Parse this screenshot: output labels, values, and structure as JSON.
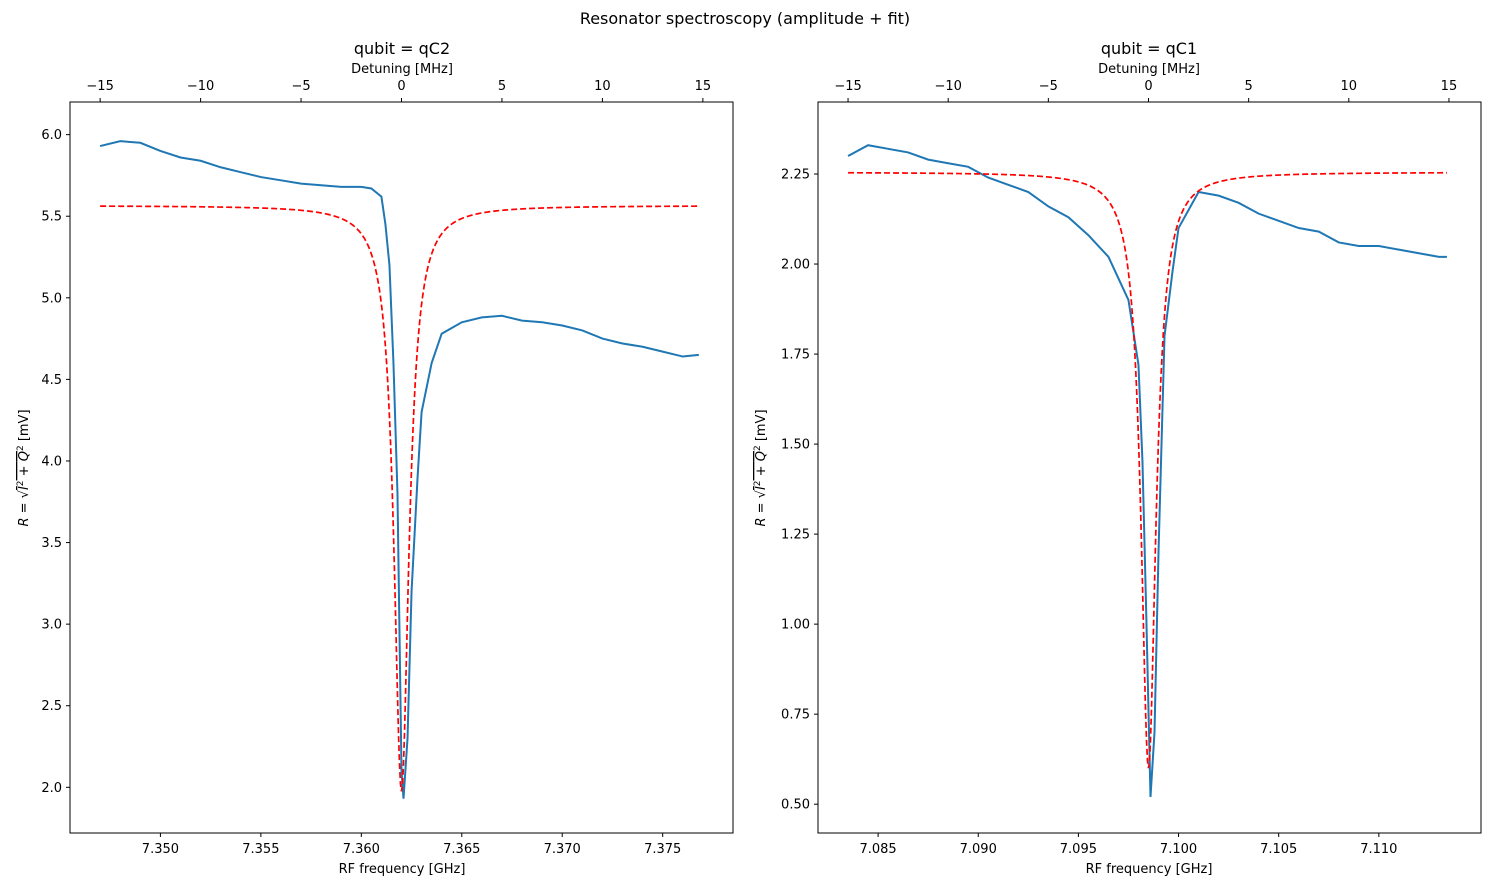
{
  "figure": {
    "title": "Resonator spectroscopy (amplitude + fit)"
  },
  "colors": {
    "data": "#1f77b4",
    "fit": "#ff0000"
  },
  "chart_data": [
    {
      "type": "line",
      "title": "qubit = qC2",
      "xlabel": "RF frequency [GHz]",
      "x2label": "Detuning [MHz]",
      "ylabel_parts": [
        "R",
        "I",
        "Q",
        "mV"
      ],
      "xlim": [
        7.3455,
        7.3785
      ],
      "ylim": [
        1.72,
        6.2
      ],
      "x_ticks": [
        7.35,
        7.355,
        7.36,
        7.365,
        7.37,
        7.375
      ],
      "x_tick_labels": [
        "7.350",
        "7.355",
        "7.360",
        "7.365",
        "7.370",
        "7.375"
      ],
      "y_ticks": [
        2.0,
        2.5,
        3.0,
        3.5,
        4.0,
        4.5,
        5.0,
        5.5,
        6.0
      ],
      "y_tick_labels": [
        "2.0",
        "2.5",
        "3.0",
        "3.5",
        "4.0",
        "4.5",
        "5.0",
        "5.5",
        "6.0"
      ],
      "x2_ticks": [
        -15,
        -10,
        -5,
        0,
        5,
        10,
        15
      ],
      "x2_tick_labels": [
        "−15",
        "−10",
        "−5",
        "0",
        "5",
        "10",
        "15"
      ],
      "resonance_ghz": 7.362,
      "series": [
        {
          "style": "solid",
          "color": "#1f77b4",
          "points": [
            [
              7.347,
              5.93
            ],
            [
              7.348,
              5.96
            ],
            [
              7.349,
              5.95
            ],
            [
              7.35,
              5.9
            ],
            [
              7.351,
              5.86
            ],
            [
              7.352,
              5.84
            ],
            [
              7.353,
              5.8
            ],
            [
              7.354,
              5.77
            ],
            [
              7.355,
              5.74
            ],
            [
              7.356,
              5.72
            ],
            [
              7.357,
              5.7
            ],
            [
              7.358,
              5.69
            ],
            [
              7.359,
              5.68
            ],
            [
              7.36,
              5.68
            ],
            [
              7.3605,
              5.67
            ],
            [
              7.361,
              5.62
            ],
            [
              7.3612,
              5.45
            ],
            [
              7.3614,
              5.2
            ],
            [
              7.3616,
              4.6
            ],
            [
              7.3618,
              3.8
            ],
            [
              7.362,
              2.1
            ],
            [
              7.3621,
              1.93
            ],
            [
              7.3623,
              2.3
            ],
            [
              7.3625,
              3.2
            ],
            [
              7.3628,
              3.9
            ],
            [
              7.363,
              4.3
            ],
            [
              7.3635,
              4.6
            ],
            [
              7.364,
              4.78
            ],
            [
              7.365,
              4.85
            ],
            [
              7.366,
              4.88
            ],
            [
              7.367,
              4.89
            ],
            [
              7.368,
              4.86
            ],
            [
              7.369,
              4.85
            ],
            [
              7.37,
              4.83
            ],
            [
              7.371,
              4.8
            ],
            [
              7.372,
              4.75
            ],
            [
              7.373,
              4.72
            ],
            [
              7.374,
              4.7
            ],
            [
              7.375,
              4.67
            ],
            [
              7.376,
              4.64
            ],
            [
              7.3768,
              4.65
            ]
          ]
        },
        {
          "style": "dashed",
          "color": "#ff0000",
          "baseline": 5.565,
          "depth": 3.59,
          "hwhm_ghz": 0.00045,
          "x_range": [
            7.347,
            7.3768
          ]
        }
      ]
    },
    {
      "type": "line",
      "title": "qubit = qC1",
      "xlabel": "RF frequency [GHz]",
      "x2label": "Detuning [MHz]",
      "ylabel_parts": [
        "R",
        "I",
        "Q",
        "mV"
      ],
      "xlim": [
        7.082,
        7.1151
      ],
      "ylim": [
        0.42,
        2.45
      ],
      "x_ticks": [
        7.085,
        7.09,
        7.095,
        7.1,
        7.105,
        7.11
      ],
      "x_tick_labels": [
        "7.085",
        "7.090",
        "7.095",
        "7.100",
        "7.105",
        "7.110"
      ],
      "y_ticks": [
        0.5,
        0.75,
        1.0,
        1.25,
        1.5,
        1.75,
        2.0,
        2.25
      ],
      "y_tick_labels": [
        "0.50",
        "0.75",
        "1.00",
        "1.25",
        "1.50",
        "1.75",
        "2.00",
        "2.25"
      ],
      "x2_ticks": [
        -15,
        -10,
        -5,
        0,
        5,
        10,
        15
      ],
      "x2_tick_labels": [
        "−15",
        "−10",
        "−5",
        "0",
        "5",
        "10",
        "15"
      ],
      "resonance_ghz": 7.0985,
      "series": [
        {
          "style": "solid",
          "color": "#1f77b4",
          "points": [
            [
              7.0835,
              2.3
            ],
            [
              7.0845,
              2.33
            ],
            [
              7.0855,
              2.32
            ],
            [
              7.0865,
              2.31
            ],
            [
              7.0875,
              2.29
            ],
            [
              7.0885,
              2.28
            ],
            [
              7.0895,
              2.27
            ],
            [
              7.0905,
              2.24
            ],
            [
              7.0915,
              2.22
            ],
            [
              7.0925,
              2.2
            ],
            [
              7.0935,
              2.16
            ],
            [
              7.0945,
              2.13
            ],
            [
              7.0955,
              2.08
            ],
            [
              7.0965,
              2.02
            ],
            [
              7.097,
              1.96
            ],
            [
              7.0975,
              1.9
            ],
            [
              7.098,
              1.72
            ],
            [
              7.0982,
              1.45
            ],
            [
              7.0984,
              1.0
            ],
            [
              7.0986,
              0.52
            ],
            [
              7.0988,
              0.7
            ],
            [
              7.099,
              1.2
            ],
            [
              7.0993,
              1.8
            ],
            [
              7.0997,
              1.98
            ],
            [
              7.1,
              2.1
            ],
            [
              7.101,
              2.2
            ],
            [
              7.102,
              2.19
            ],
            [
              7.103,
              2.17
            ],
            [
              7.104,
              2.14
            ],
            [
              7.105,
              2.12
            ],
            [
              7.106,
              2.1
            ],
            [
              7.107,
              2.09
            ],
            [
              7.108,
              2.06
            ],
            [
              7.109,
              2.05
            ],
            [
              7.11,
              2.05
            ],
            [
              7.111,
              2.04
            ],
            [
              7.112,
              2.03
            ],
            [
              7.113,
              2.02
            ],
            [
              7.1134,
              2.02
            ]
          ]
        },
        {
          "style": "dashed",
          "color": "#ff0000",
          "baseline": 2.255,
          "depth": 1.655,
          "hwhm_ghz": 0.00045,
          "x_range": [
            7.0835,
            7.1134
          ]
        }
      ]
    }
  ]
}
